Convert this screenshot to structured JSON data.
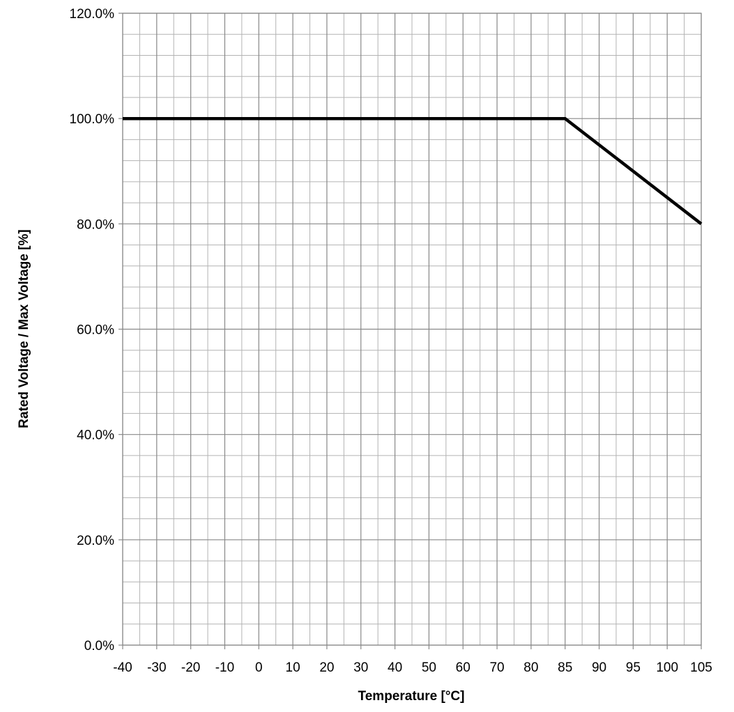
{
  "chart_data": {
    "type": "line",
    "title": "",
    "xlabel": "Temperature [°C]",
    "ylabel": "Rated Voltage / Max Voltage [%]",
    "x_ticks": [
      -40,
      -30,
      -20,
      -10,
      0,
      10,
      20,
      30,
      40,
      50,
      60,
      70,
      80,
      85,
      90,
      95,
      100,
      105
    ],
    "x_tick_labels": [
      "-40",
      "-30",
      "-20",
      "-10",
      "0",
      "10",
      "20",
      "30",
      "40",
      "50",
      "60",
      "70",
      "80",
      "85",
      "90",
      "95",
      "100",
      "105"
    ],
    "y_ticks": [
      0,
      20,
      40,
      60,
      80,
      100,
      120
    ],
    "y_tick_labels": [
      "0.0%",
      "20.0%",
      "40.0%",
      "60.0%",
      "80.0%",
      "100.0%",
      "120.0%"
    ],
    "ylim": [
      0,
      120
    ],
    "x_scale": "categorical-ticks",
    "grid": true,
    "legend": "none",
    "series": [
      {
        "x": [
          -40,
          85,
          105
        ],
        "y": [
          100,
          100,
          80
        ],
        "color": "#000000"
      }
    ],
    "colors": {
      "line": "#000000",
      "major_grid": "#888888",
      "minor_grid": "#b3b3b3",
      "background": "#ffffff"
    }
  }
}
